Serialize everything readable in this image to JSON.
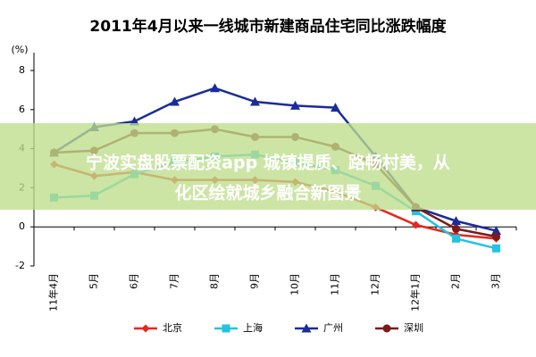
{
  "chart_data": {
    "type": "line",
    "title": "2011年4月以来一线城市新建商品住宅同比涨跌幅度",
    "y_label": "(%)",
    "categories": [
      "11年4月",
      "5月",
      "6月",
      "7月",
      "8月",
      "9月",
      "10月",
      "11月",
      "12月",
      "12年1月",
      "2月",
      "3月"
    ],
    "series": [
      {
        "name": "北京",
        "color": "#e8261c",
        "marker": "diamond",
        "values": [
          3.2,
          2.6,
          2.8,
          2.4,
          2.4,
          2.4,
          2.3,
          1.8,
          1.0,
          0.1,
          -0.4,
          -0.6
        ]
      },
      {
        "name": "上海",
        "color": "#22c4e0",
        "marker": "square",
        "values": [
          1.5,
          1.6,
          2.7,
          3.3,
          3.6,
          3.7,
          3.3,
          2.9,
          2.1,
          0.8,
          -0.6,
          -1.1
        ]
      },
      {
        "name": "广州",
        "color": "#1a2c9c",
        "marker": "triangle",
        "values": [
          3.8,
          5.1,
          5.4,
          6.4,
          7.1,
          6.4,
          6.2,
          6.1,
          3.6,
          1.0,
          0.3,
          -0.2
        ]
      },
      {
        "name": "深圳",
        "color": "#7b1a1a",
        "marker": "circle",
        "values": [
          3.8,
          3.9,
          4.8,
          4.8,
          5.0,
          4.6,
          4.6,
          4.1,
          3.2,
          1.0,
          -0.1,
          -0.5
        ]
      }
    ],
    "ylim": [
      -2,
      8
    ],
    "yticks": [
      -2,
      0,
      2,
      4,
      6,
      8
    ],
    "legend": "bottom",
    "overlay_text": [
      "宁波实盘股票配资app 城镇提质、路畅村美，从",
      "化区绘就城乡融合新图景"
    ]
  }
}
